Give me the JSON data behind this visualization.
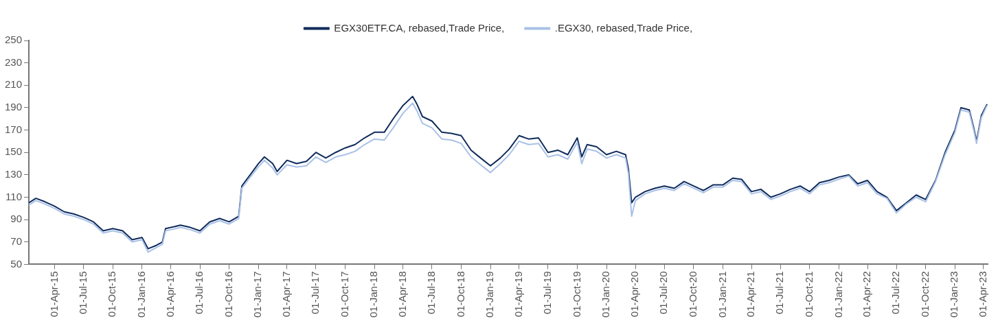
{
  "chart_data": {
    "type": "line",
    "legend": "top",
    "grid": false,
    "marker": "none",
    "line_style": "solid",
    "x": [
      "2015-01-10",
      "2015-02-01",
      "2015-03-01",
      "2015-04-01",
      "2015-05-01",
      "2015-06-01",
      "2015-07-01",
      "2015-08-01",
      "2015-09-01",
      "2015-10-01",
      "2015-11-01",
      "2015-12-01",
      "2016-01-01",
      "2016-01-20",
      "2016-02-15",
      "2016-03-05",
      "2016-03-15",
      "2016-04-01",
      "2016-05-01",
      "2016-06-01",
      "2016-07-01",
      "2016-08-01",
      "2016-09-01",
      "2016-10-01",
      "2016-10-31",
      "2016-11-10",
      "2016-12-01",
      "2017-01-01",
      "2017-01-20",
      "2017-02-15",
      "2017-03-01",
      "2017-04-01",
      "2017-05-01",
      "2017-06-01",
      "2017-07-01",
      "2017-08-01",
      "2017-09-01",
      "2017-10-01",
      "2017-11-01",
      "2017-12-01",
      "2018-01-01",
      "2018-02-01",
      "2018-03-01",
      "2018-04-01",
      "2018-05-01",
      "2018-05-15",
      "2018-06-01",
      "2018-07-01",
      "2018-08-01",
      "2018-09-01",
      "2018-10-01",
      "2018-11-01",
      "2018-12-01",
      "2019-01-01",
      "2019-02-01",
      "2019-03-01",
      "2019-04-01",
      "2019-05-01",
      "2019-06-01",
      "2019-07-01",
      "2019-08-01",
      "2019-09-01",
      "2019-10-01",
      "2019-10-15",
      "2019-11-01",
      "2019-12-01",
      "2020-01-01",
      "2020-02-01",
      "2020-03-01",
      "2020-03-10",
      "2020-03-20",
      "2020-04-01",
      "2020-05-01",
      "2020-06-01",
      "2020-07-01",
      "2020-08-01",
      "2020-09-01",
      "2020-10-01",
      "2020-11-01",
      "2020-12-01",
      "2021-01-01",
      "2021-02-01",
      "2021-03-01",
      "2021-04-01",
      "2021-05-01",
      "2021-06-01",
      "2021-07-01",
      "2021-08-01",
      "2021-09-01",
      "2021-10-01",
      "2021-11-01",
      "2021-12-01",
      "2022-01-01",
      "2022-02-01",
      "2022-03-01",
      "2022-04-01",
      "2022-05-01",
      "2022-06-01",
      "2022-07-01",
      "2022-08-01",
      "2022-09-01",
      "2022-10-01",
      "2022-11-01",
      "2022-12-01",
      "2023-01-01",
      "2023-01-20",
      "2023-02-15",
      "2023-03-01",
      "2023-03-10",
      "2023-03-25",
      "2023-04-12"
    ],
    "series": [
      {
        "name": "EGX30ETF.CA, rebased,Trade Price,",
        "color": "#0f2b5b",
        "values": [
          105,
          109,
          106,
          102,
          97,
          95,
          92,
          88,
          80,
          82,
          80,
          72,
          74,
          64,
          67,
          70,
          82,
          83,
          85,
          83,
          80,
          88,
          91,
          88,
          93,
          120,
          128,
          140,
          146,
          140,
          133,
          143,
          140,
          142,
          150,
          145,
          150,
          154,
          157,
          163,
          168,
          168,
          180,
          192,
          200,
          193,
          182,
          178,
          168,
          167,
          165,
          152,
          145,
          138,
          145,
          153,
          165,
          162,
          163,
          150,
          152,
          148,
          163,
          146,
          157,
          155,
          148,
          151,
          148,
          135,
          105,
          110,
          115,
          118,
          120,
          118,
          124,
          120,
          116,
          121,
          121,
          127,
          126,
          115,
          117,
          110,
          113,
          117,
          120,
          115,
          123,
          125,
          128,
          130,
          122,
          125,
          115,
          110,
          98,
          105,
          112,
          108,
          125,
          150,
          170,
          190,
          188,
          172,
          160,
          183,
          193
        ]
      },
      {
        "name": ".EGX30, rebased,Trade Price,",
        "color": "#a9c1e6",
        "values": [
          103,
          107,
          104,
          100,
          95,
          93,
          90,
          86,
          78,
          80,
          78,
          70,
          72,
          61,
          65,
          68,
          80,
          81,
          83,
          81,
          78,
          86,
          89,
          86,
          91,
          118,
          126,
          137,
          143,
          136,
          130,
          139,
          137,
          138,
          146,
          141,
          146,
          148,
          151,
          157,
          162,
          161,
          172,
          185,
          194,
          187,
          176,
          172,
          162,
          161,
          158,
          146,
          139,
          132,
          140,
          148,
          160,
          157,
          158,
          146,
          148,
          144,
          159,
          140,
          153,
          151,
          145,
          148,
          145,
          131,
          93,
          107,
          113,
          116,
          118,
          116,
          122,
          118,
          114,
          119,
          119,
          125,
          124,
          113,
          115,
          108,
          111,
          115,
          118,
          113,
          121,
          123,
          126,
          129,
          120,
          123,
          113,
          109,
          96,
          104,
          110,
          106,
          124,
          148,
          168,
          188,
          186,
          170,
          158,
          181,
          192
        ]
      }
    ],
    "xlim": [
      "2015-01-10",
      "2023-04-15"
    ],
    "xticks": [
      {
        "value": "2015-04-01",
        "label": "01-Apr-15"
      },
      {
        "value": "2015-07-01",
        "label": "01-Jul-15"
      },
      {
        "value": "2015-10-01",
        "label": "01-Oct-15"
      },
      {
        "value": "2016-01-01",
        "label": "01-Jan-16"
      },
      {
        "value": "2016-04-01",
        "label": "01-Apr-16"
      },
      {
        "value": "2016-07-01",
        "label": "01-Jul-16"
      },
      {
        "value": "2016-10-01",
        "label": "01-Oct-16"
      },
      {
        "value": "2017-01-01",
        "label": "01-Jan-17"
      },
      {
        "value": "2017-04-01",
        "label": "01-Apr-17"
      },
      {
        "value": "2017-07-01",
        "label": "01-Jul-17"
      },
      {
        "value": "2017-10-01",
        "label": "01-Oct-17"
      },
      {
        "value": "2018-01-01",
        "label": "01-Jan-18"
      },
      {
        "value": "2018-04-01",
        "label": "01-Apr-18"
      },
      {
        "value": "2018-07-01",
        "label": "01-Jul-18"
      },
      {
        "value": "2018-10-01",
        "label": "01-Oct-18"
      },
      {
        "value": "2019-01-01",
        "label": "01-Jan-19"
      },
      {
        "value": "2019-04-01",
        "label": "01-Apr-19"
      },
      {
        "value": "2019-07-01",
        "label": "01-Jul-19"
      },
      {
        "value": "2019-10-01",
        "label": "01-Oct-19"
      },
      {
        "value": "2020-01-01",
        "label": "01-Jan-20"
      },
      {
        "value": "2020-04-01",
        "label": "01-Apr-20"
      },
      {
        "value": "2020-07-01",
        "label": "01-Jul-20"
      },
      {
        "value": "2020-10-01",
        "label": "01-Oct-20"
      },
      {
        "value": "2021-01-01",
        "label": "01-Jan-21"
      },
      {
        "value": "2021-04-01",
        "label": "01-Apr-21"
      },
      {
        "value": "2021-07-01",
        "label": "01-Jul-21"
      },
      {
        "value": "2021-10-01",
        "label": "01-Oct-21"
      },
      {
        "value": "2022-01-01",
        "label": "01-Jan-22"
      },
      {
        "value": "2022-04-01",
        "label": "01-Apr-22"
      },
      {
        "value": "2022-07-01",
        "label": "01-Jul-22"
      },
      {
        "value": "2022-10-01",
        "label": "01-Oct-22"
      },
      {
        "value": "2023-01-01",
        "label": "01-Jan-23"
      },
      {
        "value": "2023-04-01",
        "label": "01-Apr-23"
      }
    ],
    "ylim": [
      50,
      250
    ],
    "yticks": [
      50,
      70,
      90,
      110,
      130,
      150,
      170,
      190,
      210,
      230,
      250
    ]
  }
}
